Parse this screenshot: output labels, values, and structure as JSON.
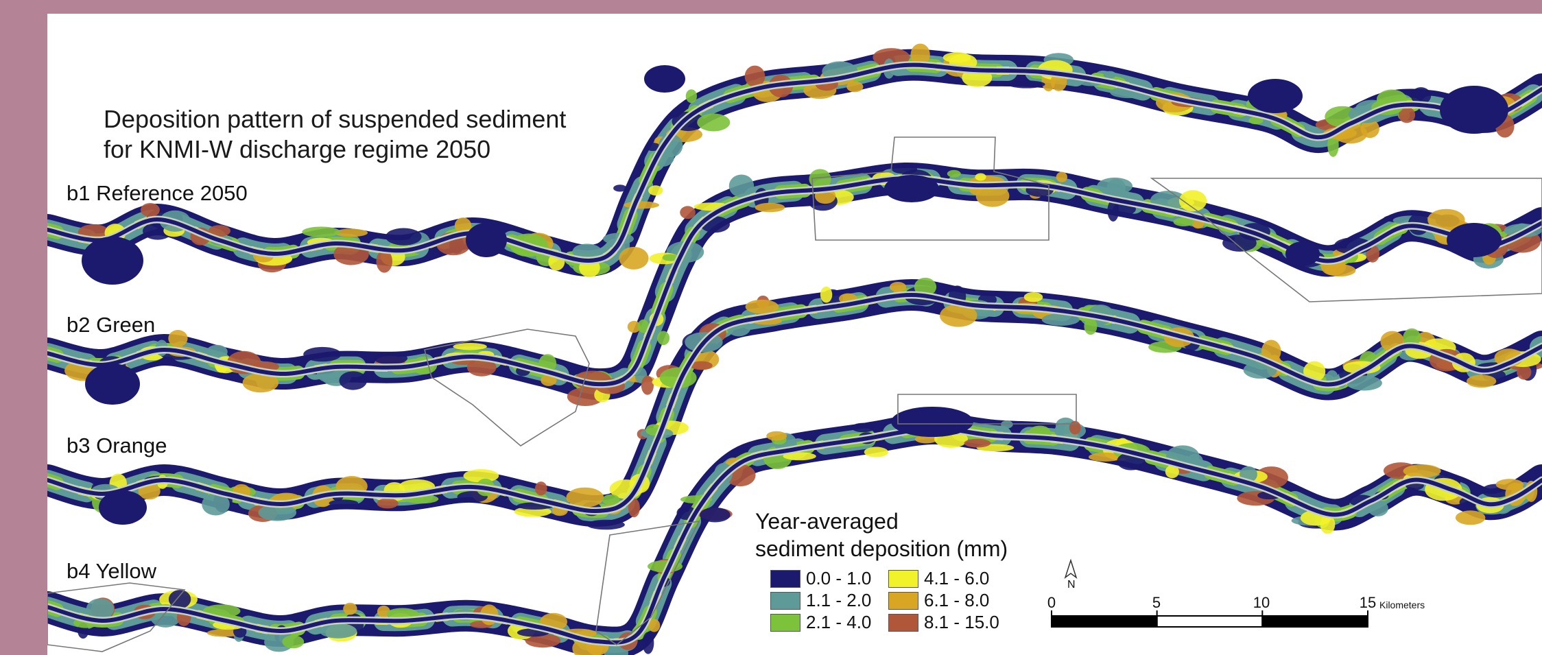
{
  "title": {
    "line1": "Deposition pattern of suspended sediment",
    "line2": "for KNMI-W discharge regime 2050"
  },
  "scenarios": [
    {
      "label": "b1 Reference 2050"
    },
    {
      "label": "b2 Green"
    },
    {
      "label": "b3 Orange"
    },
    {
      "label": "b4 Yellow"
    }
  ],
  "legend": {
    "title_line1": "Year-averaged",
    "title_line2": "sediment deposition (mm)",
    "classes": [
      {
        "label": "0.0 - 1.0",
        "color": "#1b1a6e"
      },
      {
        "label": "1.1 - 2.0",
        "color": "#5e9a98"
      },
      {
        "label": "2.1 - 4.0",
        "color": "#7cc23a"
      },
      {
        "label": "4.1 - 6.0",
        "color": "#f2f22a"
      },
      {
        "label": "6.1 - 8.0",
        "color": "#d8a623"
      },
      {
        "label": "8.1 - 15.0",
        "color": "#b0573a"
      }
    ]
  },
  "scale_bar": {
    "ticks": [
      0,
      5,
      10,
      15
    ],
    "ticks_text": [
      "0",
      "5",
      "10",
      "15"
    ],
    "unit": "Kilometers"
  },
  "north_arrow": {
    "label": "N",
    "icon": "north-arrow-icon"
  }
}
